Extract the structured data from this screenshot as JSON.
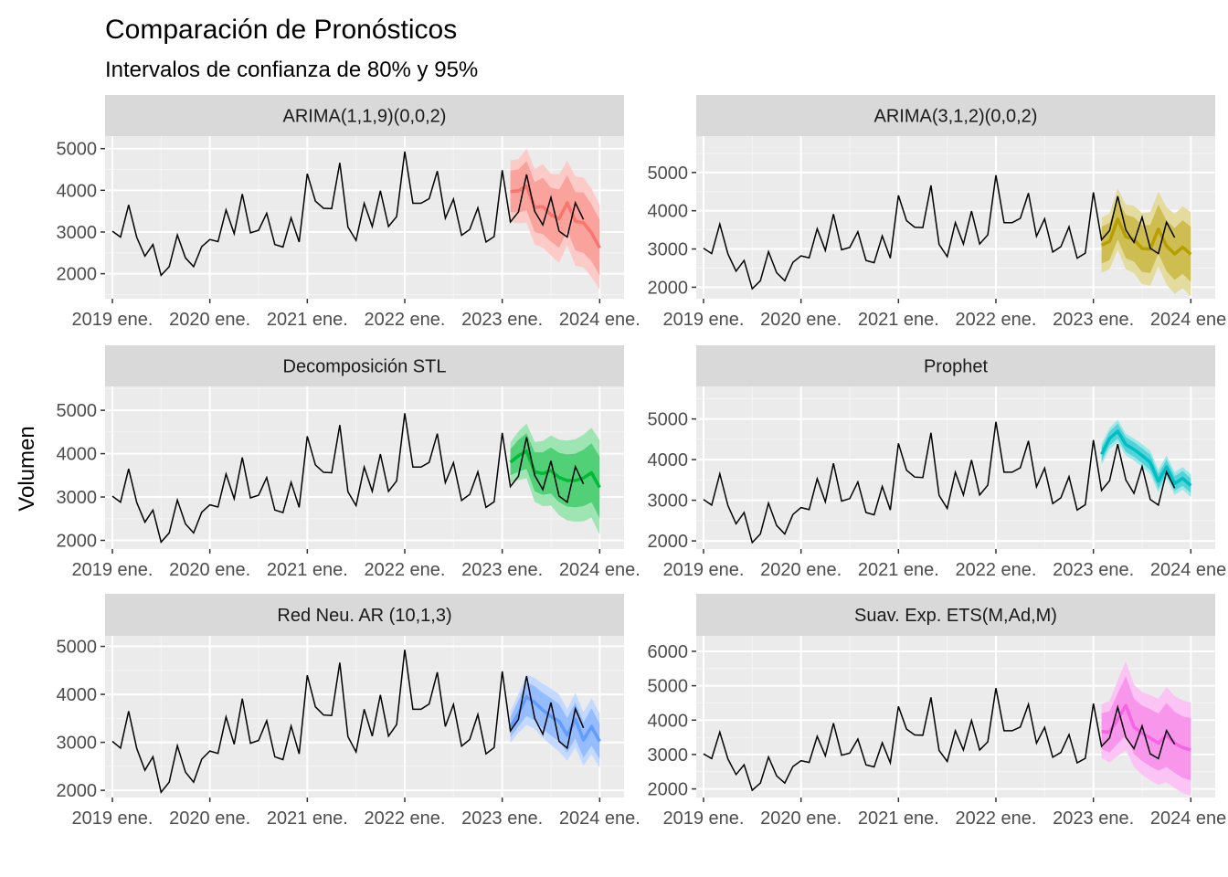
{
  "title": "Comparación de Pronósticos",
  "subtitle": "Intervalos de confianza de 80% y 95%",
  "ylabel": "Volumen",
  "chart_data": {
    "type": "line",
    "title": "Comparación de Pronósticos",
    "subtitle": "Intervalos de confianza de 80% y 95%",
    "xlabel": "",
    "ylabel": "Volumen",
    "x_tick_labels": [
      "2019 ene.",
      "2020 ene.",
      "2021 ene.",
      "2022 ene.",
      "2023 ene.",
      "2024 ene."
    ],
    "observed": {
      "x_start": "2019-01",
      "frequency": "monthly",
      "values": [
        3020,
        2880,
        3650,
        2870,
        2420,
        2700,
        1960,
        2170,
        2930,
        2380,
        2170,
        2650,
        2820,
        2770,
        3530,
        2960,
        3910,
        2980,
        3040,
        3450,
        2700,
        2640,
        3340,
        2760,
        4400,
        3740,
        3570,
        3560,
        4660,
        3120,
        2800,
        3690,
        3130,
        3990,
        3130,
        3370,
        4930,
        3690,
        3690,
        3800,
        4460,
        3330,
        3790,
        2920,
        3060,
        3580,
        2760,
        2890,
        4480,
        3240,
        3480,
        4380,
        3500,
        3170,
        3830,
        3020,
        2880,
        3700,
        3300
      ]
    },
    "forecast_x_start": "2023-02",
    "panels": [
      {
        "name": "ARIMA(1,1,9)(0,0,2)",
        "color": "#F8766D",
        "ylim": [
          1400,
          5300
        ],
        "yticks": [
          2000,
          3000,
          4000,
          5000
        ],
        "mean": [
          3970,
          3990,
          4100,
          3590,
          3610,
          3410,
          3320,
          3700,
          3260,
          3220,
          2980,
          2620
        ],
        "lo80": [
          3480,
          3470,
          3520,
          3000,
          2950,
          2770,
          2620,
          3040,
          2560,
          2500,
          2300,
          1960
        ],
        "hi80": [
          4470,
          4500,
          4700,
          4200,
          4300,
          4060,
          4020,
          4360,
          3960,
          3950,
          3660,
          3300
        ],
        "lo95": [
          3230,
          3210,
          3220,
          2700,
          2620,
          2440,
          2260,
          2690,
          2190,
          2150,
          1920,
          1620
        ],
        "hi95": [
          4720,
          4750,
          5000,
          4510,
          4630,
          4400,
          4380,
          4710,
          4330,
          4310,
          4040,
          3650
        ]
      },
      {
        "name": "ARIMA(3,1,2)(0,0,2)",
        "color": "#B79F00",
        "ylim": [
          1700,
          5950
        ],
        "yticks": [
          2000,
          3000,
          4000,
          5000
        ],
        "mean": [
          3100,
          3200,
          3780,
          3320,
          3250,
          3010,
          3000,
          3520,
          3080,
          2870,
          3050,
          2860
        ],
        "lo80": [
          2620,
          2710,
          3250,
          2760,
          2670,
          2400,
          2370,
          2880,
          2420,
          2190,
          2350,
          2140
        ],
        "hi80": [
          3580,
          3690,
          4310,
          3890,
          3830,
          3620,
          3630,
          4160,
          3740,
          3550,
          3750,
          3580
        ],
        "lo95": [
          2380,
          2470,
          2980,
          2470,
          2370,
          2080,
          2040,
          2540,
          2070,
          1830,
          1980,
          1760
        ],
        "hi95": [
          3820,
          3930,
          4580,
          4170,
          4130,
          3940,
          3960,
          4500,
          4090,
          3910,
          4120,
          3960
        ]
      },
      {
        "name": "Decomposición STL",
        "color": "#00BA38",
        "ylim": [
          1800,
          5550
        ],
        "yticks": [
          2000,
          3000,
          4000,
          5000
        ],
        "mean": [
          3800,
          3950,
          4060,
          3580,
          3540,
          3610,
          3450,
          3380,
          3380,
          3440,
          3560,
          3220
        ],
        "lo80": [
          3500,
          3580,
          3650,
          3130,
          3050,
          3080,
          2880,
          2780,
          2760,
          2790,
          2880,
          2510
        ],
        "hi80": [
          4100,
          4320,
          4470,
          4030,
          4030,
          4140,
          4020,
          3980,
          4000,
          4090,
          4240,
          3930
        ],
        "lo95": [
          3340,
          3390,
          3430,
          2890,
          2790,
          2800,
          2580,
          2460,
          2430,
          2440,
          2520,
          2130
        ],
        "hi95": [
          4260,
          4510,
          4690,
          4270,
          4290,
          4420,
          4320,
          4300,
          4330,
          4440,
          4600,
          4310
        ]
      },
      {
        "name": "Prophet",
        "color": "#00BFC4",
        "ylim": [
          1800,
          5800
        ],
        "yticks": [
          2000,
          3000,
          4000,
          5000
        ],
        "mean": [
          4130,
          4520,
          4700,
          4370,
          4250,
          4100,
          3930,
          3470,
          3820,
          3410,
          3540,
          3360
        ],
        "lo80": [
          3960,
          4350,
          4520,
          4190,
          4070,
          3920,
          3740,
          3290,
          3640,
          3230,
          3360,
          3180
        ],
        "hi80": [
          4300,
          4690,
          4880,
          4550,
          4430,
          4280,
          4120,
          3650,
          4000,
          3590,
          3720,
          3540
        ],
        "lo95": [
          3870,
          4260,
          4420,
          4100,
          3980,
          3820,
          3640,
          3190,
          3540,
          3130,
          3260,
          3080
        ],
        "hi95": [
          4390,
          4780,
          4980,
          4640,
          4520,
          4380,
          4220,
          3750,
          4100,
          3690,
          3820,
          3640
        ]
      },
      {
        "name": "Red Neu. AR (10,1,3)",
        "color": "#619CFF",
        "ylim": [
          1850,
          5220
        ],
        "yticks": [
          2000,
          3000,
          4000,
          5000
        ],
        "mean": [
          3310,
          3600,
          3950,
          3830,
          3670,
          3540,
          3440,
          3150,
          3480,
          3050,
          3330,
          3020
        ],
        "lo80": [
          3100,
          3330,
          3550,
          3460,
          3280,
          3140,
          3020,
          2790,
          3080,
          2680,
          2930,
          2650
        ],
        "hi80": [
          3520,
          3870,
          4250,
          4170,
          4030,
          3920,
          3800,
          3500,
          3830,
          3420,
          3710,
          3390
        ],
        "lo95": [
          2990,
          3200,
          3360,
          3280,
          3090,
          2950,
          2810,
          2620,
          2890,
          2510,
          2750,
          2470
        ],
        "hi95": [
          3640,
          4010,
          4410,
          4340,
          4220,
          4120,
          4000,
          3690,
          4030,
          3630,
          3920,
          3600
        ]
      },
      {
        "name": "Suav. Exp. ETS(M,Ad,M)",
        "color": "#F564E3",
        "ylim": [
          1750,
          6450
        ],
        "yticks": [
          2000,
          3000,
          4000,
          5000,
          6000
        ],
        "mean": [
          3670,
          3650,
          4030,
          4420,
          3800,
          3620,
          3480,
          3330,
          3560,
          3330,
          3200,
          3140
        ],
        "lo80": [
          3160,
          3060,
          3320,
          3560,
          3020,
          2810,
          2660,
          2530,
          2640,
          2470,
          2320,
          2250
        ],
        "hi80": [
          4200,
          4260,
          4780,
          5280,
          4620,
          4420,
          4320,
          4190,
          4500,
          4240,
          4110,
          4060
        ],
        "lo95": [
          2900,
          2770,
          2960,
          3130,
          2640,
          2410,
          2250,
          2120,
          2190,
          2030,
          1880,
          1800
        ],
        "hi95": [
          4460,
          4560,
          5160,
          5720,
          5030,
          4820,
          4730,
          4620,
          4960,
          4700,
          4570,
          4510
        ]
      }
    ],
    "grid": true,
    "legend": "none"
  }
}
